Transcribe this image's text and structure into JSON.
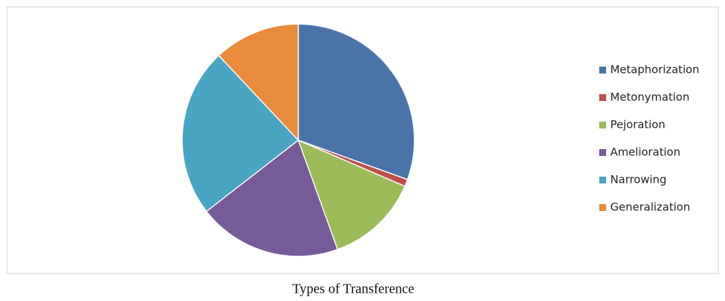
{
  "chart_data": {
    "type": "pie",
    "title": "Types of Transference",
    "categories": [
      "Metaphorization",
      "Metonymation",
      "Pejoration",
      "Amelioration",
      "Narrowing",
      "Generalization"
    ],
    "values": [
      30.5,
      1,
      13,
      20,
      23.5,
      12
    ],
    "colors": [
      "#4a73a9",
      "#c0504d",
      "#9bbb59",
      "#775a98",
      "#4aa5c3",
      "#e88b3c"
    ],
    "legend": "right"
  }
}
